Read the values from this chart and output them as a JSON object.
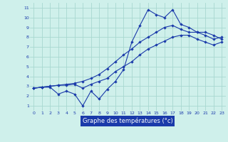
{
  "title": "Graphe des températures (°c)",
  "background_color": "#cff0eb",
  "grid_color": "#a8d8d0",
  "line_color": "#1a3aaa",
  "ylim": [
    0.5,
    11.5
  ],
  "xlim": [
    -0.5,
    23.5
  ],
  "yticks": [
    1,
    2,
    3,
    4,
    5,
    6,
    7,
    8,
    9,
    10,
    11
  ],
  "xticks": [
    0,
    1,
    2,
    3,
    4,
    5,
    6,
    7,
    8,
    9,
    10,
    11,
    12,
    13,
    14,
    15,
    16,
    17,
    18,
    19,
    20,
    21,
    22,
    23
  ],
  "line1_x": [
    0,
    1,
    2,
    3,
    4,
    5,
    6,
    7,
    8,
    9,
    10,
    11,
    12,
    13,
    14,
    15,
    16,
    17,
    18,
    19,
    20,
    21,
    22,
    23
  ],
  "line1_y": [
    2.8,
    2.9,
    2.9,
    2.2,
    2.5,
    2.2,
    1.0,
    2.5,
    1.7,
    2.7,
    3.5,
    4.7,
    7.5,
    9.2,
    10.8,
    10.3,
    10.0,
    10.8,
    9.3,
    9.0,
    8.5,
    8.5,
    8.2,
    7.8
  ],
  "line2_x": [
    0,
    1,
    2,
    3,
    4,
    5,
    6,
    7,
    8,
    9,
    10,
    11,
    12,
    13,
    14,
    15,
    16,
    17,
    18,
    19,
    20,
    21,
    22,
    23
  ],
  "line2_y": [
    2.8,
    2.9,
    3.0,
    3.1,
    3.1,
    3.2,
    2.8,
    3.2,
    3.5,
    3.8,
    4.5,
    5.0,
    5.5,
    6.2,
    6.8,
    7.2,
    7.6,
    8.0,
    8.2,
    8.2,
    7.8,
    7.5,
    7.2,
    7.5
  ],
  "line3_x": [
    0,
    1,
    2,
    3,
    4,
    5,
    6,
    7,
    8,
    9,
    10,
    11,
    12,
    13,
    14,
    15,
    16,
    17,
    18,
    19,
    20,
    21,
    22,
    23
  ],
  "line3_y": [
    2.8,
    2.9,
    3.0,
    3.1,
    3.2,
    3.3,
    3.5,
    3.8,
    4.2,
    4.8,
    5.5,
    6.2,
    6.8,
    7.5,
    8.0,
    8.5,
    9.0,
    9.2,
    8.8,
    8.5,
    8.5,
    8.2,
    7.8,
    8.0
  ]
}
